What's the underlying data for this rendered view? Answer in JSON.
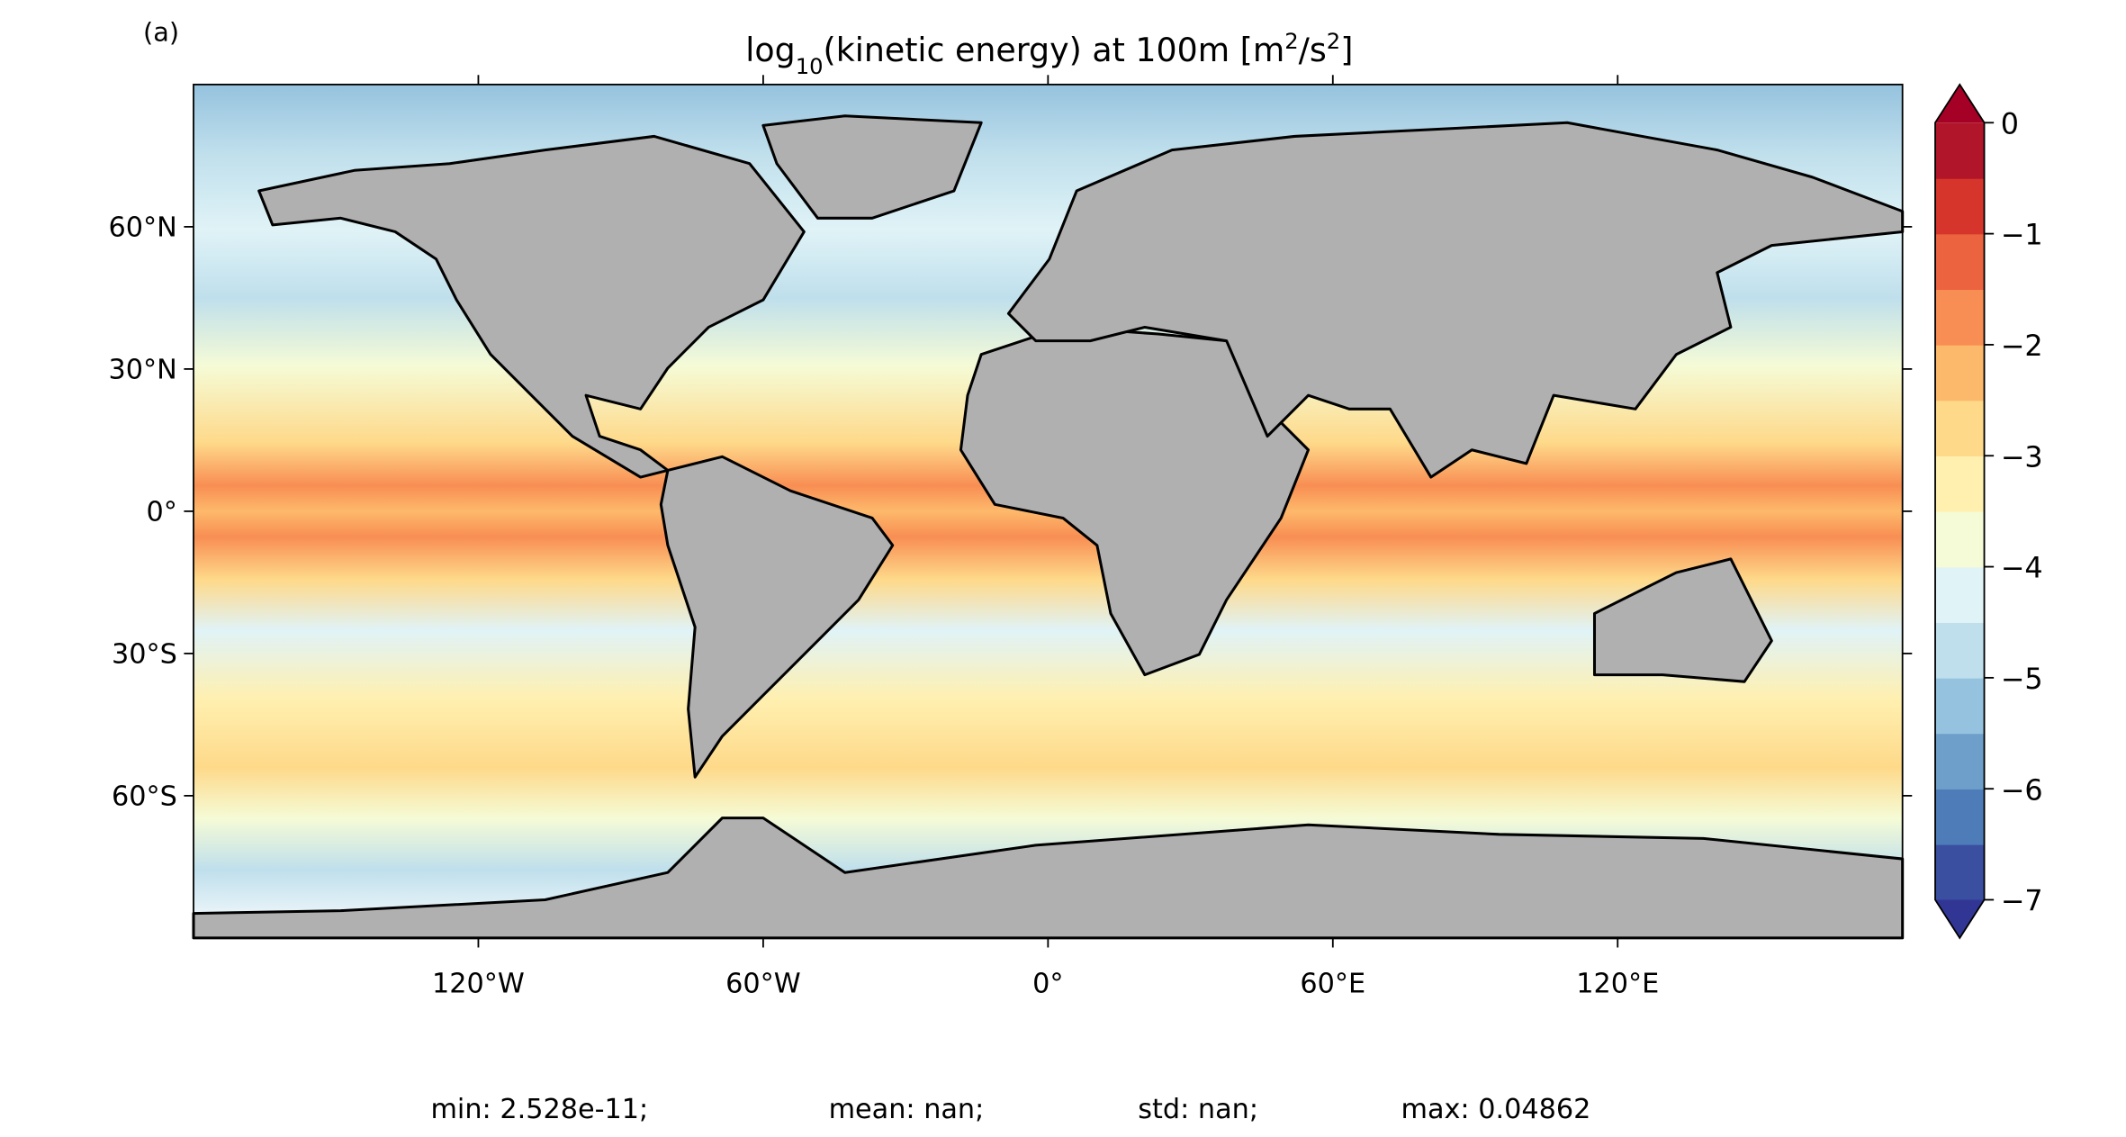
{
  "panel_label": "(a)",
  "chart_data": {
    "type": "map",
    "title": {
      "parts": [
        {
          "text": "log"
        },
        {
          "text": "10",
          "script": "sub"
        },
        {
          "text": "(kinetic energy) at 100m [m"
        },
        {
          "text": "2",
          "script": "super"
        },
        {
          "text": "/s"
        },
        {
          "text": "2",
          "script": "super"
        },
        {
          "text": "]"
        }
      ]
    },
    "xlim": [
      -180,
      180
    ],
    "ylim": [
      -90,
      90
    ],
    "xticks": [
      {
        "value": -120,
        "label": "120°W"
      },
      {
        "value": -60,
        "label": "60°W"
      },
      {
        "value": 0,
        "label": "0°"
      },
      {
        "value": 60,
        "label": "60°E"
      },
      {
        "value": 120,
        "label": "120°E"
      }
    ],
    "yticks": [
      {
        "value": 60,
        "label": "60°N"
      },
      {
        "value": 30,
        "label": "30°N"
      },
      {
        "value": 0,
        "label": "0°"
      },
      {
        "value": -30,
        "label": "30°S"
      },
      {
        "value": -60,
        "label": "60°S"
      }
    ],
    "colorbar": {
      "lim": [
        -7,
        0
      ],
      "ticks": [
        0,
        {
          "value": -1,
          "label": "−1"
        },
        {
          "value": -2,
          "label": "−2"
        },
        {
          "value": -3,
          "label": "−3"
        },
        {
          "value": -4,
          "label": "−4"
        },
        {
          "value": -5,
          "label": "−5"
        },
        {
          "value": -6,
          "label": "−6"
        },
        {
          "value": -7,
          "label": "−7"
        }
      ],
      "colors": [
        "#3a4fa0",
        "#4e7cb9",
        "#6d9fca",
        "#95c2de",
        "#bfdfec",
        "#e0f3f7",
        "#f5fbd6",
        "#fff0b0",
        "#fed98a",
        "#fdb96b",
        "#f88e53",
        "#ec6340",
        "#d6352c",
        "#b1152a"
      ],
      "extend_colors": [
        "#313695",
        "#a50026"
      ]
    },
    "stats": [
      "min: 2.528e-11;",
      "mean: nan;",
      "std: nan;",
      "max: 0.04862"
    ]
  }
}
